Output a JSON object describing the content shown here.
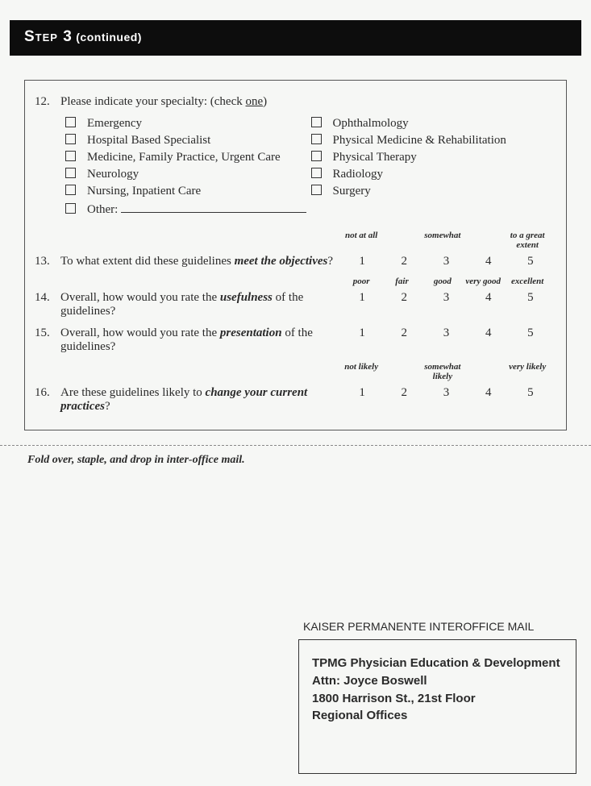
{
  "header": {
    "step": "Step 3",
    "continued": "(continued)"
  },
  "q12": {
    "num": "12.",
    "prompt_pre": "Please indicate your specialty: (check ",
    "prompt_underline": "one",
    "prompt_post": ")",
    "left": [
      "Emergency",
      "Hospital Based Specialist",
      "Medicine, Family Practice, Urgent Care",
      "Neurology",
      "Nursing, Inpatient Care"
    ],
    "right": [
      "Ophthalmology",
      "Physical Medicine & Rehabilitation",
      "Physical Therapy",
      "Radiology",
      "Surgery"
    ],
    "other_label": "Other:"
  },
  "scales": {
    "h1": {
      "c1": "not at all",
      "c3": "somewhat",
      "c5_line1": "to a great",
      "c5_line2": "extent"
    },
    "h2": {
      "c1": "poor",
      "c2": "fair",
      "c3": "good",
      "c4": "very good",
      "c5": "excellent"
    },
    "h3": {
      "c1": "not likely",
      "c3": "somewhat likely",
      "c5": "very likely"
    },
    "numbers": [
      "1",
      "2",
      "3",
      "4",
      "5"
    ]
  },
  "q13": {
    "num": "13.",
    "pre": "To what extent did these guidelines ",
    "emph": "meet the objectives",
    "post": "?"
  },
  "q14": {
    "num": "14.",
    "pre": "Overall, how would you rate the ",
    "emph": "usefulness",
    "post": " of the guidelines?"
  },
  "q15": {
    "num": "15.",
    "pre": "Overall, how would you rate the ",
    "emph": "presentation",
    "post": " of the guidelines?"
  },
  "q16": {
    "num": "16.",
    "pre": "Are these guidelines likely to ",
    "emph": "change your current practices",
    "post": "?"
  },
  "fold_text": "Fold over, staple, and drop in inter-office mail.",
  "mail": {
    "heading": "KAISER PERMANENTE INTEROFFICE MAIL",
    "line1": "TPMG Physician Education & Development",
    "line2": "Attn: Joyce Boswell",
    "line3": "1800 Harrison St., 21st Floor",
    "line4": "Regional Offices"
  }
}
